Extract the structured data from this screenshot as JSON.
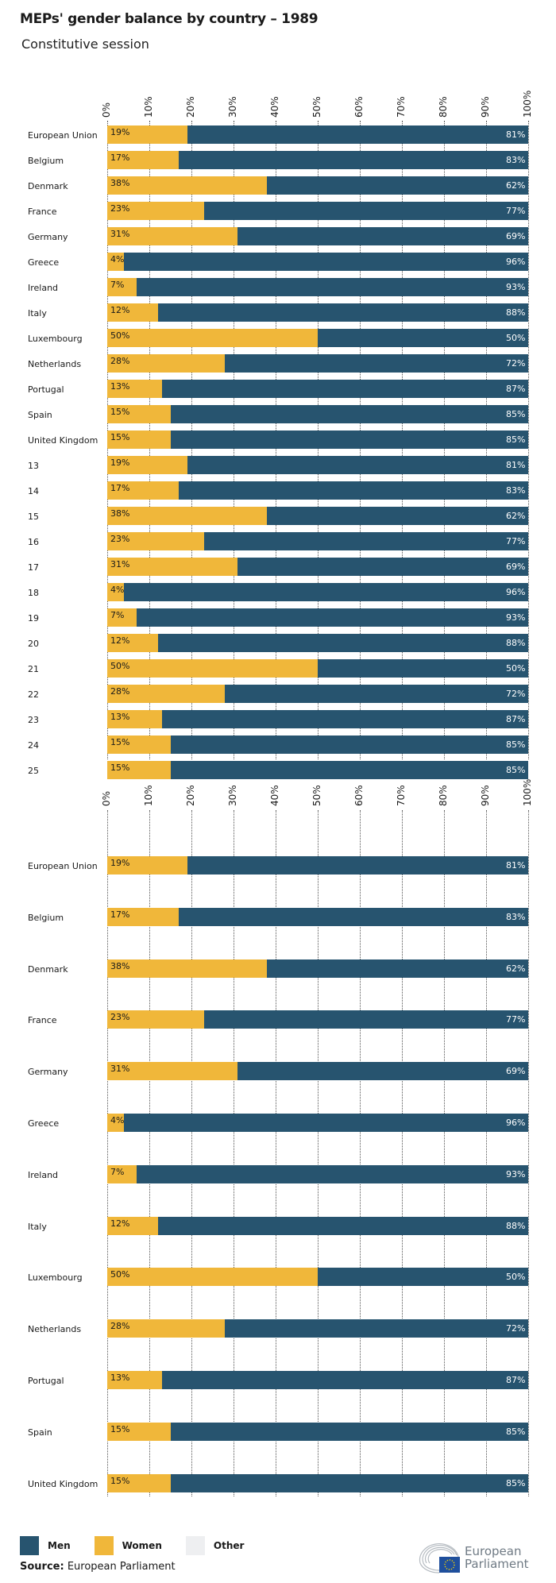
{
  "title": "MEPs' gender balance by country – 1989",
  "subtitle": "Constitutive session",
  "colors": {
    "men": "#27546f",
    "women": "#f0b73a",
    "other": "#eeeff1"
  },
  "chart_data": [
    {
      "type": "bar",
      "orientation": "horizontal",
      "stacked": true,
      "percent": true,
      "xlim": [
        0,
        100
      ],
      "grid": true,
      "ticks": [
        "0%",
        "10%",
        "20%",
        "30%",
        "40%",
        "50%",
        "60%",
        "70%",
        "80%",
        "90%",
        "100%"
      ],
      "categories": [
        "European Union",
        "Belgium",
        "Denmark",
        "France",
        "Germany",
        "Greece",
        "Ireland",
        "Italy",
        "Luxembourg",
        "Netherlands",
        "Portugal",
        "Spain",
        "United Kingdom",
        "13",
        "14",
        "15",
        "16",
        "17",
        "18",
        "19",
        "20",
        "21",
        "22",
        "23",
        "24",
        "25"
      ],
      "series": [
        {
          "name": "Women",
          "values": [
            19,
            17,
            38,
            23,
            31,
            4,
            7,
            12,
            50,
            28,
            13,
            15,
            15,
            19,
            17,
            38,
            23,
            31,
            4,
            7,
            12,
            50,
            28,
            13,
            15,
            15
          ]
        },
        {
          "name": "Men",
          "values": [
            81,
            83,
            62,
            77,
            69,
            96,
            93,
            88,
            50,
            72,
            87,
            85,
            85,
            81,
            83,
            62,
            77,
            69,
            96,
            93,
            88,
            50,
            72,
            87,
            85,
            85
          ]
        }
      ]
    },
    {
      "type": "bar",
      "orientation": "horizontal",
      "stacked": true,
      "percent": true,
      "xlim": [
        0,
        100
      ],
      "grid": true,
      "ticks": [
        "0%",
        "10%",
        "20%",
        "30%",
        "40%",
        "50%",
        "60%",
        "70%",
        "80%",
        "90%",
        "100%"
      ],
      "categories": [
        "European Union",
        "Belgium",
        "Denmark",
        "France",
        "Germany",
        "Greece",
        "Ireland",
        "Italy",
        "Luxembourg",
        "Netherlands",
        "Portugal",
        "Spain",
        "United Kingdom"
      ],
      "series": [
        {
          "name": "Women",
          "values": [
            19,
            17,
            38,
            23,
            31,
            4,
            7,
            12,
            50,
            28,
            13,
            15,
            15
          ]
        },
        {
          "name": "Men",
          "values": [
            81,
            83,
            62,
            77,
            69,
            96,
            93,
            88,
            50,
            72,
            87,
            85,
            85
          ]
        }
      ]
    }
  ],
  "legend": [
    {
      "label": "Men",
      "color": "#27546f"
    },
    {
      "label": "Women",
      "color": "#f0b73a"
    },
    {
      "label": "Other",
      "color": "#eeeff1"
    }
  ],
  "source": {
    "label": "Source:",
    "text": "European Parliament"
  },
  "logo": {
    "line1": "European",
    "line2": "Parliament"
  }
}
